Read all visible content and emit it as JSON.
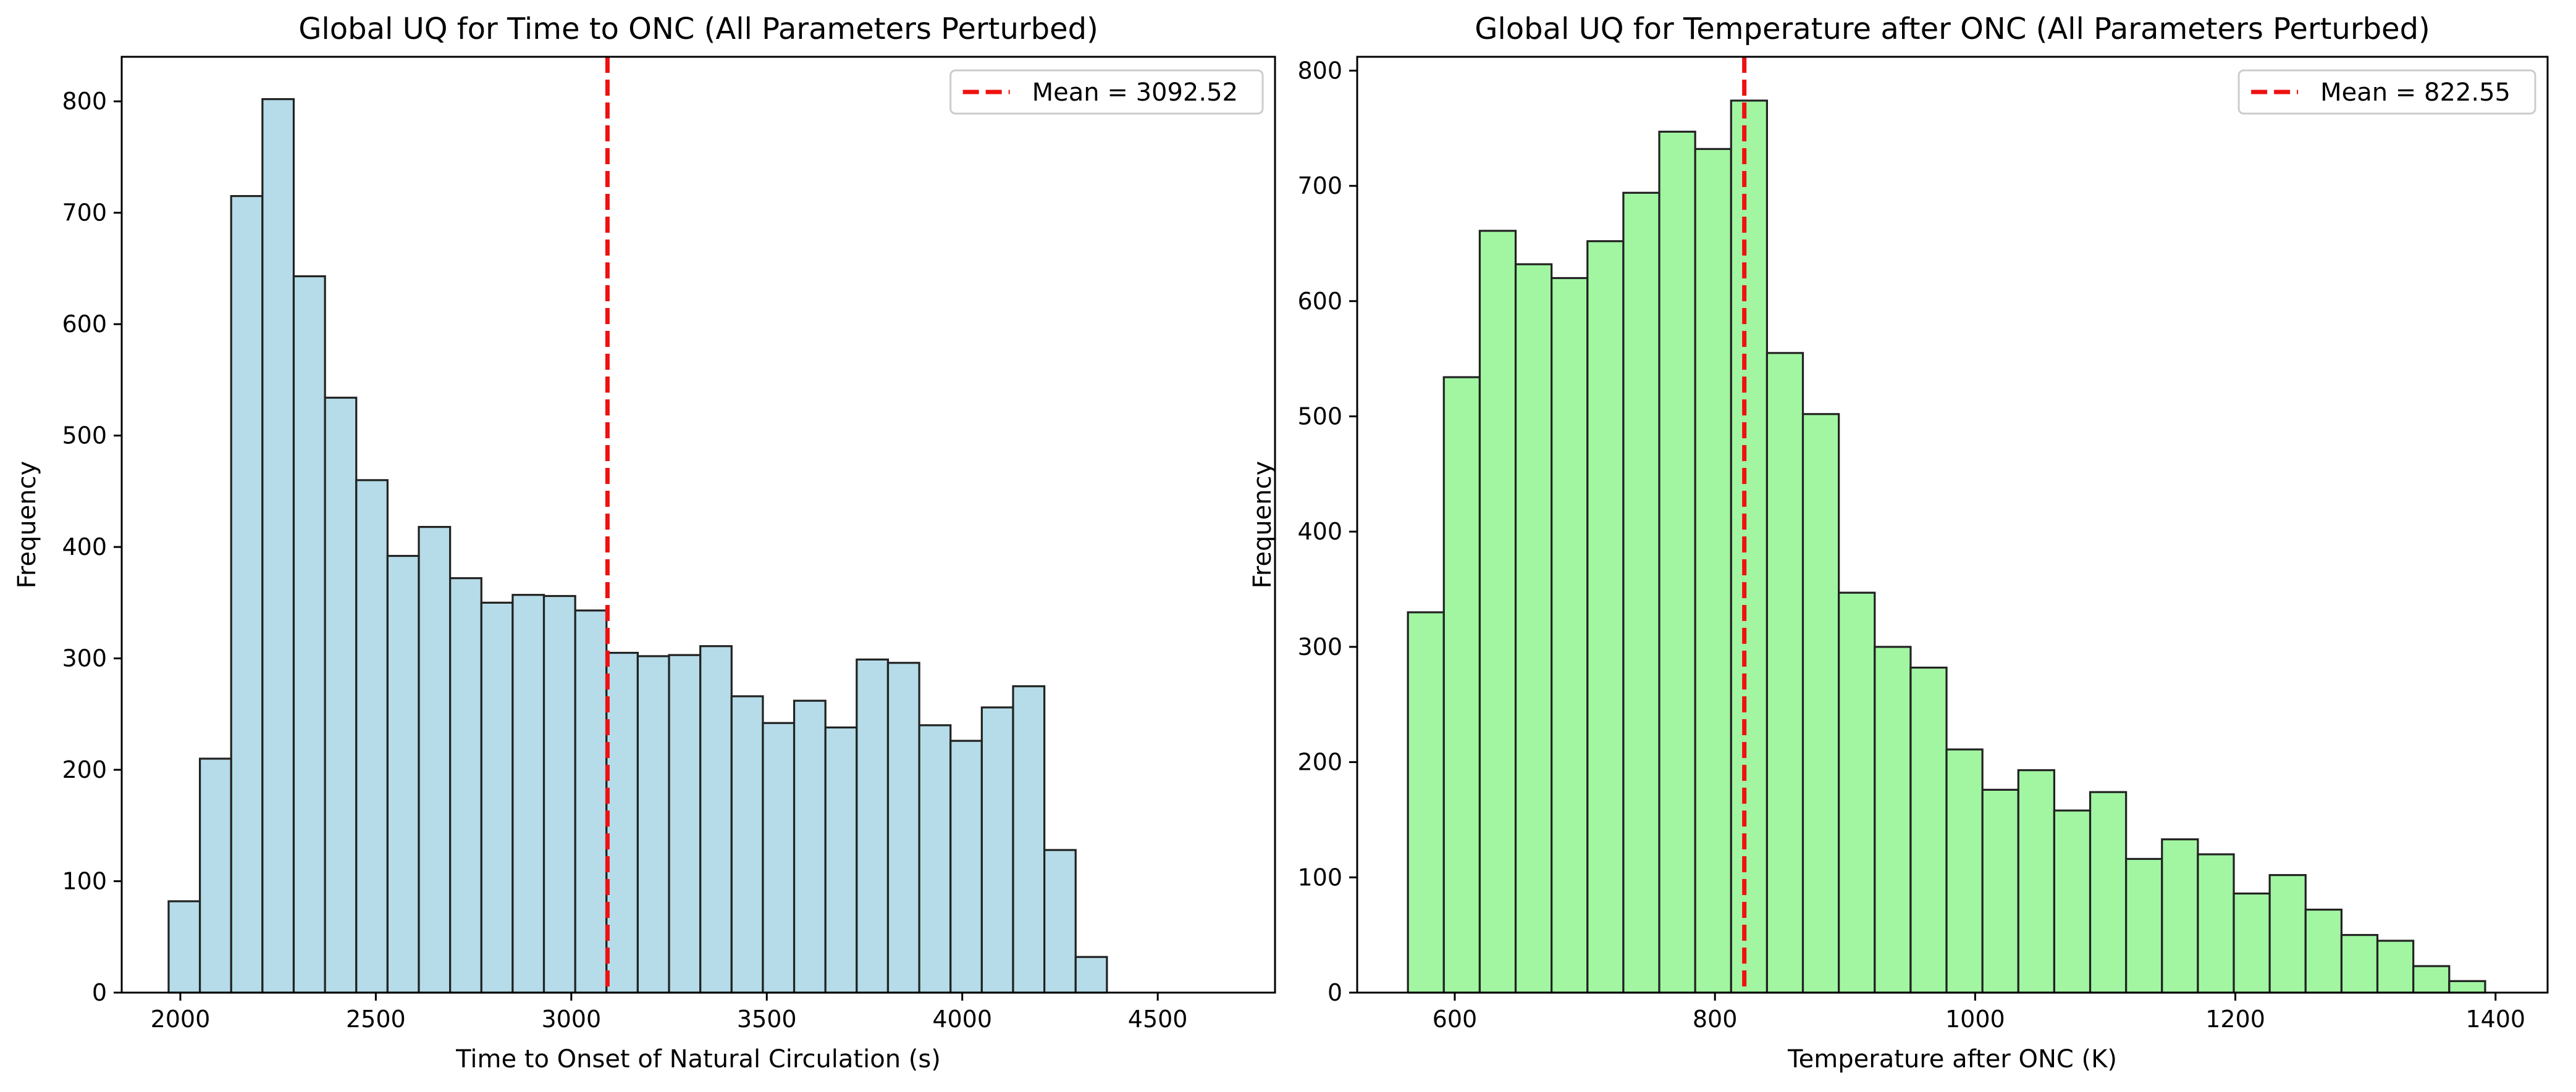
{
  "chart_data": [
    {
      "type": "bar",
      "title": "Global UQ for Time to ONC (All Parameters Perturbed)",
      "xlabel": "Time to Onset of Natural Circulation (s)",
      "ylabel": "Frequency",
      "xlim": [
        1850,
        4800
      ],
      "ylim": [
        0,
        840
      ],
      "xticks": [
        2000,
        2500,
        3000,
        3500,
        4000,
        4500
      ],
      "yticks": [
        0,
        100,
        200,
        300,
        400,
        500,
        600,
        700,
        800
      ],
      "bin_start": 1970,
      "bin_width": 80,
      "values": [
        82,
        210,
        715,
        802,
        643,
        534,
        460,
        392,
        418,
        372,
        350,
        357,
        356,
        343,
        305,
        302,
        303,
        311,
        266,
        242,
        262,
        238,
        299,
        296,
        240,
        226,
        256,
        275,
        128,
        32
      ],
      "mean": 3092.52,
      "legend": "Mean = 3092.52",
      "legend_position": "top-right",
      "grid": false,
      "bar_color": "#add8e6"
    },
    {
      "type": "bar",
      "title": "Global UQ for Temperature after ONC (All Parameters Perturbed)",
      "xlabel": "Temperature after ONC (K)",
      "ylabel": "Frequency",
      "xlim": [
        525,
        1440
      ],
      "ylim": [
        0,
        812
      ],
      "xticks": [
        600,
        800,
        1000,
        1200,
        1400
      ],
      "yticks": [
        0,
        100,
        200,
        300,
        400,
        500,
        600,
        700,
        800
      ],
      "bin_start": 564,
      "bin_width": 27.6,
      "values": [
        330,
        534,
        661,
        632,
        620,
        652,
        694,
        747,
        732,
        774,
        555,
        502,
        347,
        300,
        282,
        211,
        176,
        193,
        158,
        174,
        116,
        133,
        120,
        86,
        102,
        72,
        50,
        45,
        23,
        10
      ],
      "mean": 822.55,
      "legend": "Mean = 822.55",
      "legend_position": "top-right",
      "grid": false,
      "bar_color": "#98f598"
    }
  ]
}
